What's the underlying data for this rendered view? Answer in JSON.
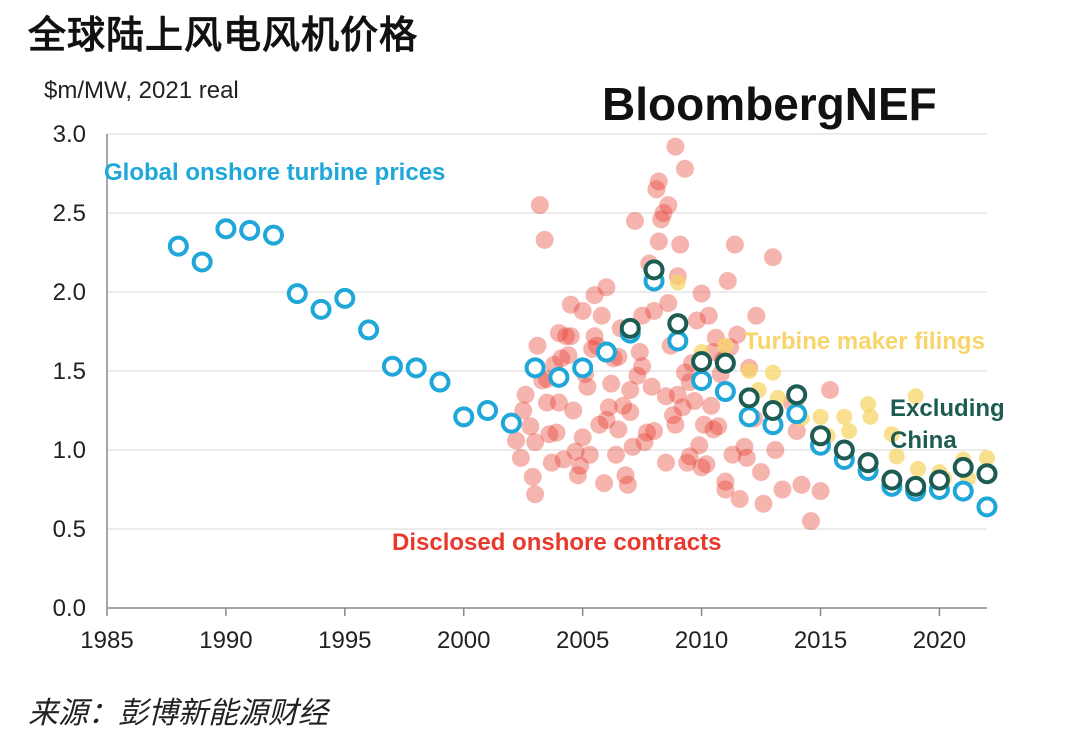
{
  "title": "全球陆上风电风机价格",
  "source": "来源：彭博新能源财经",
  "colors": {
    "global": "#1ea7d8",
    "excl_china": "#1d5c52",
    "turbine_maker": "#f7d56a",
    "disclosed": "#e8392c",
    "grid": "#d9d9d9",
    "axis": "#888888"
  },
  "chart_data": {
    "type": "scatter",
    "title": "全球陆上风电风机价格",
    "ylabel": "$m/MW, 2021 real",
    "xlabel": "",
    "xlim": [
      1985,
      2022
    ],
    "ylim": [
      0,
      3.0
    ],
    "xticks": [
      "1985",
      "1990",
      "1995",
      "2000",
      "2005",
      "2010",
      "2015",
      "2020"
    ],
    "yticks": [
      "0.0",
      "0.5",
      "1.0",
      "1.5",
      "2.0",
      "2.5",
      "3.0"
    ],
    "logo": "BloombergNEF",
    "annotations": {
      "global": "Global onshore turbine prices",
      "turbine": "Turbine maker filings",
      "excl1": "Excluding",
      "excl2": "China",
      "disclosed": "Disclosed onshore contracts"
    },
    "series": [
      {
        "name": "Global onshore turbine prices",
        "x": [
          1988,
          1989,
          1990,
          1991,
          1992,
          1993,
          1994,
          1995,
          1996,
          1997,
          1998,
          1999,
          2000,
          2001,
          2002,
          2003,
          2004,
          2005,
          2006,
          2007,
          2008,
          2009,
          2010,
          2011,
          2012,
          2013,
          2014,
          2015,
          2016,
          2017,
          2018,
          2019,
          2020,
          2021,
          2022
        ],
        "y": [
          2.29,
          2.19,
          2.4,
          2.39,
          2.36,
          1.99,
          1.89,
          1.96,
          1.76,
          1.53,
          1.52,
          1.43,
          1.21,
          1.25,
          1.17,
          1.52,
          1.46,
          1.52,
          1.62,
          1.74,
          2.07,
          1.69,
          1.44,
          1.37,
          1.21,
          1.16,
          1.23,
          1.03,
          0.94,
          0.87,
          0.77,
          0.74,
          0.75,
          0.74,
          0.64
        ]
      },
      {
        "name": "Excluding China",
        "x": [
          2007,
          2008,
          2009,
          2010,
          2011,
          2012,
          2013,
          2014,
          2015,
          2016,
          2017,
          2018,
          2019,
          2020,
          2021,
          2022
        ],
        "y": [
          1.77,
          2.14,
          1.8,
          1.56,
          1.55,
          1.33,
          1.25,
          1.35,
          1.09,
          1.0,
          0.92,
          0.81,
          0.77,
          0.81,
          0.89,
          0.85
        ]
      },
      {
        "name": "Turbine maker filings",
        "x": [
          2009,
          2010,
          2011,
          2012,
          2012.4,
          2013,
          2013.2,
          2014,
          2014.2,
          2015,
          2015.3,
          2016,
          2016.2,
          2017,
          2017.1,
          2018,
          2018.2,
          2019,
          2019.1,
          2020,
          2020.2,
          2021,
          2021.2,
          2022,
          2022.1
        ],
        "y": [
          2.06,
          1.62,
          1.66,
          1.5,
          1.38,
          1.49,
          1.33,
          1.31,
          1.2,
          1.21,
          1.09,
          1.21,
          1.12,
          1.29,
          1.21,
          1.1,
          0.96,
          1.34,
          0.88,
          0.86,
          0.82,
          0.94,
          0.82,
          0.95,
          0.84
        ]
      },
      {
        "name": "Disclosed onshore contracts",
        "x": [
          2002.2,
          2002.4,
          2002.6,
          2002.8,
          2003.0,
          2003.1,
          2003.3,
          2003.5,
          2003.7,
          2003.9,
          2004.0,
          2004.2,
          2004.4,
          2004.6,
          2004.8,
          2005.0,
          2005.1,
          2005.3,
          2005.5,
          2005.7,
          2005.9,
          2006.0,
          2006.2,
          2006.4,
          2006.6,
          2006.8,
          2007.0,
          2007.2,
          2007.4,
          2007.6,
          2007.8,
          2008.0,
          2008.1,
          2008.3,
          2008.5,
          2008.7,
          2008.9,
          2009.0,
          2009.2,
          2009.4,
          2009.6,
          2009.8,
          2010.0,
          2010.2,
          2010.4,
          2010.6,
          2010.8,
          2011.0,
          2011.2,
          2011.4,
          2011.6,
          2011.8,
          2012.0,
          2012.3,
          2012.6,
          2013.0,
          2013.4,
          2013.8,
          2014.2,
          2014.6,
          2015.0,
          2015.4,
          2016.0,
          2002.5,
          2003.2,
          2003.6,
          2004.1,
          2004.5,
          2004.9,
          2005.2,
          2005.6,
          2006.1,
          2006.5,
          2006.9,
          2007.1,
          2007.5,
          2007.9,
          2008.2,
          2008.6,
          2009.1,
          2009.5,
          2009.9,
          2010.3,
          2010.7,
          2011.1,
          2011.5,
          2011.9,
          2012.2,
          2002.9,
          2003.4,
          2003.8,
          2004.3,
          2004.7,
          2005.4,
          2005.8,
          2006.3,
          2006.7,
          2007.3,
          2007.7,
          2008.4,
          2008.8,
          2009.3,
          2009.7,
          2010.1,
          2010.5,
          2010.9,
          2011.3,
          2012.5,
          2013.1,
          2014.0,
          2003.0,
          2004.0,
          2005.0,
          2006.0,
          2007.0,
          2008.0,
          2009.0,
          2010.0,
          2011.0,
          2003.5,
          2004.5,
          2005.5,
          2006.5,
          2007.5,
          2008.5,
          2009.5,
          2010.5,
          2008.9,
          2008.2,
          2009.3,
          2008.6
        ],
        "y": [
          1.06,
          0.95,
          1.35,
          1.15,
          0.72,
          1.66,
          1.44,
          1.3,
          0.92,
          1.11,
          1.74,
          0.94,
          1.6,
          1.25,
          0.84,
          1.88,
          1.48,
          0.97,
          1.72,
          1.16,
          0.79,
          2.03,
          1.42,
          0.97,
          1.77,
          0.84,
          1.38,
          2.45,
          1.62,
          1.05,
          2.18,
          1.88,
          2.65,
          2.46,
          1.34,
          1.66,
          1.16,
          2.1,
          1.27,
          0.92,
          1.55,
          1.82,
          1.99,
          0.91,
          1.28,
          1.71,
          1.48,
          0.8,
          1.65,
          2.3,
          0.69,
          1.02,
          1.52,
          1.85,
          0.66,
          2.22,
          0.75,
          1.3,
          0.78,
          0.55,
          0.74,
          1.38,
          0.98,
          1.25,
          2.55,
          1.1,
          1.58,
          1.92,
          0.9,
          1.4,
          1.66,
          1.27,
          1.59,
          0.78,
          1.02,
          1.53,
          1.4,
          2.7,
          1.93,
          2.3,
          1.43,
          1.03,
          1.85,
          1.15,
          2.07,
          1.73,
          0.95,
          1.2,
          0.83,
          2.33,
          1.54,
          1.72,
          0.99,
          1.64,
          1.85,
          1.58,
          1.28,
          1.47,
          1.11,
          2.5,
          1.22,
          1.49,
          1.31,
          1.16,
          1.13,
          1.57,
          0.97,
          0.86,
          1.0,
          1.12,
          1.05,
          1.3,
          1.08,
          1.19,
          1.24,
          1.12,
          1.35,
          0.89,
          0.75,
          1.45,
          1.72,
          1.98,
          1.13,
          1.85,
          0.92,
          0.96,
          1.62,
          2.92,
          2.32,
          2.78,
          2.55
        ]
      }
    ]
  }
}
